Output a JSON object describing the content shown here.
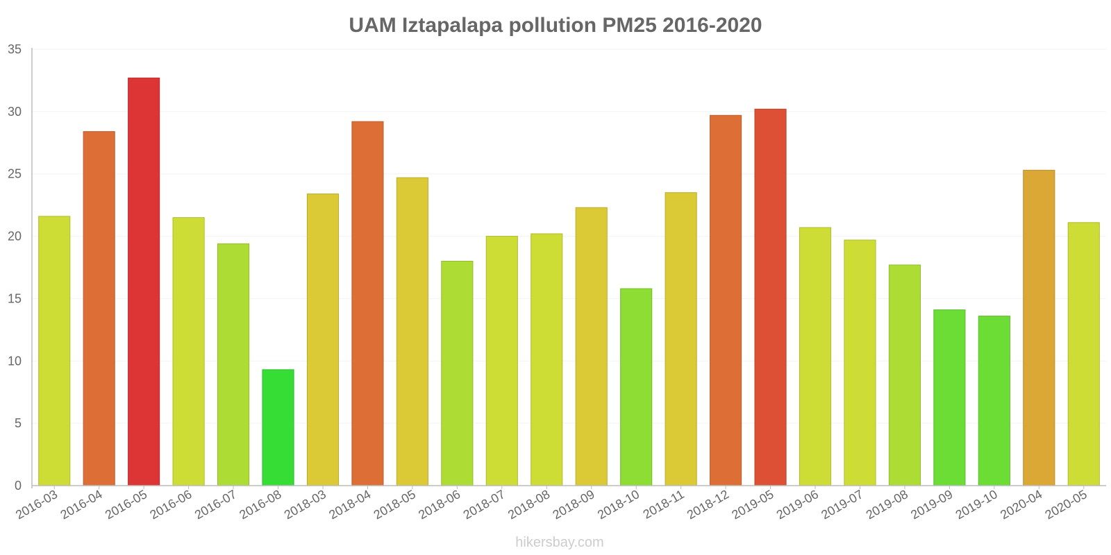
{
  "chart_data": {
    "type": "bar",
    "title": "UAM Iztapalapa pollution PM25 2016-2020",
    "xlabel": "",
    "ylabel": "",
    "ylim": [
      0,
      35
    ],
    "yticks": [
      0,
      5,
      10,
      15,
      20,
      25,
      30,
      35
    ],
    "grid": true,
    "categories": [
      "2016-03",
      "2016-04",
      "2016-05",
      "2016-06",
      "2016-07",
      "2016-08",
      "2018-03",
      "2018-04",
      "2018-05",
      "2018-06",
      "2018-07",
      "2018-08",
      "2018-09",
      "2018-10",
      "2018-11",
      "2018-12",
      "2019-05",
      "2019-06",
      "2019-07",
      "2019-08",
      "2019-09",
      "2019-10",
      "2020-04",
      "2020-05"
    ],
    "values": [
      21.6,
      28.4,
      32.7,
      21.5,
      19.4,
      9.3,
      23.4,
      29.2,
      24.7,
      18.0,
      20.0,
      20.2,
      22.3,
      15.8,
      23.5,
      29.7,
      30.2,
      20.7,
      19.7,
      17.7,
      14.1,
      13.6,
      25.3,
      21.1
    ],
    "colors": [
      "#cedd35",
      "#dd6e35",
      "#dd3535",
      "#cedd35",
      "#addd35",
      "#35dd35",
      "#dbca35",
      "#dd6e35",
      "#dbca35",
      "#addd35",
      "#cedd35",
      "#cedd35",
      "#dbca35",
      "#8ddd35",
      "#dbca35",
      "#dd6e35",
      "#dd5035",
      "#cedd35",
      "#cedd35",
      "#addd35",
      "#6cdd35",
      "#6cdd35",
      "#dba735",
      "#cedd35"
    ]
  },
  "watermark": "hikersbay.com"
}
